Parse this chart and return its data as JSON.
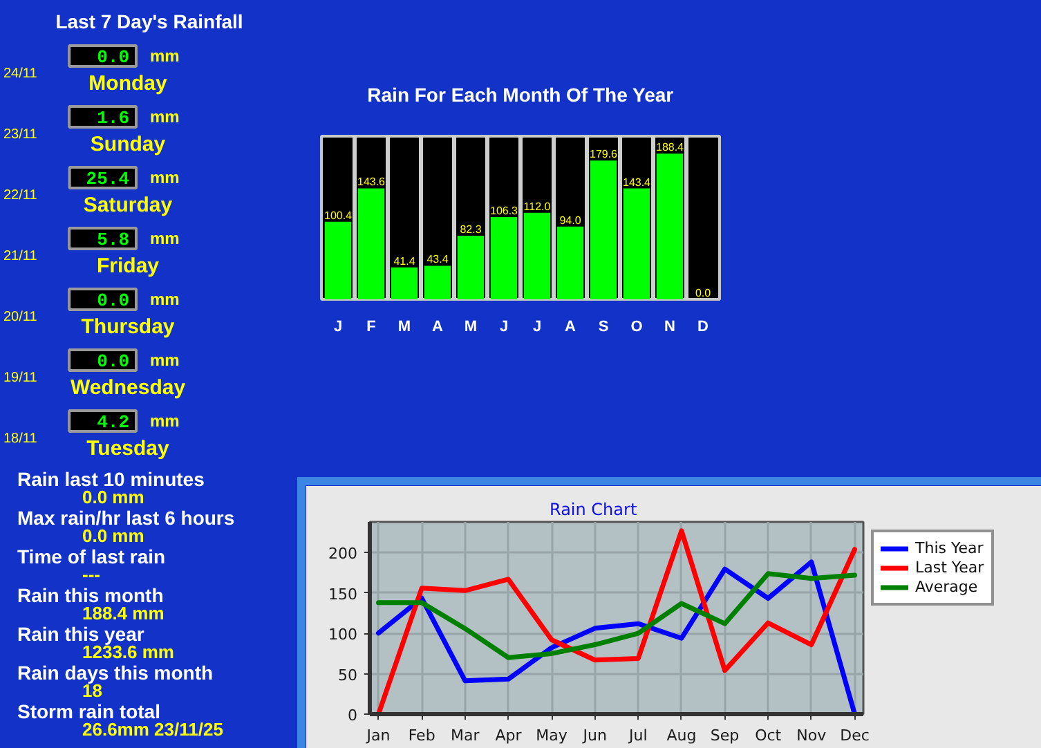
{
  "chart_data": [
    {
      "type": "other",
      "title": "Last 7 Day's Rainfall",
      "annotations": [
        "24/11",
        "0.0",
        "mm",
        "Monday",
        "23/11",
        "1.6",
        "mm",
        "Sunday",
        "22/11",
        "25.4",
        "mm",
        "Saturday",
        "21/11",
        "5.8",
        "mm",
        "Friday",
        "20/11",
        "0.0",
        "mm",
        "Thursday",
        "19/11",
        "0.0",
        "mm",
        "Wednesday",
        "18/11",
        "4.2",
        "mm",
        "Tuesday"
      ]
    },
    {
      "type": "bar",
      "title": "Rain For Each Month Of The Year",
      "categories": [
        "J",
        "F",
        "M",
        "A",
        "M",
        "J",
        "J",
        "A",
        "S",
        "O",
        "N",
        "D"
      ],
      "values": [
        100.4,
        143.6,
        41.4,
        43.4,
        82.3,
        106.3,
        112.0,
        94.0,
        179.6,
        143.4,
        188.4,
        0.0
      ],
      "value_labels": [
        "100.4",
        "143.6",
        "41.4",
        "43.4",
        "82.3",
        "106.3",
        "112.0",
        "94.0",
        "179.6",
        "143.4",
        "188.4",
        "0.0"
      ],
      "color": "#00ff00",
      "grid": "x"
    },
    {
      "type": "other",
      "annotations": [
        "Rain last 10 minutes",
        "0.0 mm",
        "Max rain/hr last 6 hours",
        "0.0 mm",
        "Time of last rain",
        "---",
        "Rain this month",
        "188.4 mm",
        "Rain this year",
        "1233.6 mm",
        "Rain days this month",
        "18",
        "Storm rain total",
        "26.6mm 23/11/25"
      ]
    },
    {
      "type": "line",
      "title": "Rain Chart",
      "categories": [
        "Jan",
        "Feb",
        "Mar",
        "Apr",
        "May",
        "Jun",
        "Jul",
        "Aug",
        "Sep",
        "Oct",
        "Nov",
        "Dec"
      ],
      "series": [
        {
          "name": "This Year",
          "color": "#0000ff",
          "values": [
            100.4,
            143.6,
            41.4,
            43.4,
            82.3,
            106.3,
            112.0,
            94.0,
            179.6,
            143.4,
            188.4,
            0.0
          ]
        },
        {
          "name": "Last Year",
          "color": "#ff0000",
          "values": [
            0,
            156,
            153,
            167,
            92,
            67,
            69,
            227,
            54,
            113,
            86,
            204
          ]
        },
        {
          "name": "Average",
          "color": "#008000",
          "values": [
            138,
            138,
            106,
            70,
            75,
            86,
            100,
            137,
            112,
            174,
            168,
            172
          ]
        }
      ],
      "ylim": [
        0,
        238
      ],
      "yticks": [
        0,
        50,
        100,
        150,
        200
      ],
      "grid": true,
      "legend": "top right"
    }
  ]
}
